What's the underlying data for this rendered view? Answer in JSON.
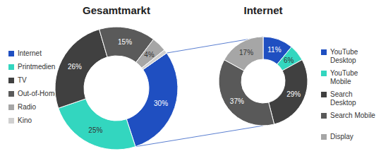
{
  "chart_data": [
    {
      "type": "pie",
      "title": "Gesamtmarkt",
      "categories": [
        "Internet",
        "Printmedien",
        "TV",
        "Out-of-Home",
        "Radio",
        "Kino"
      ],
      "values": [
        30,
        25,
        26,
        15,
        4,
        1
      ],
      "value_labels": [
        "30%",
        "25%",
        "26%",
        "15%",
        "4%",
        null
      ],
      "colors": [
        "#1f4fc1",
        "#33d6bf",
        "#404040",
        "#5a5a5a",
        "#a6a6a6",
        "#d0d0d0"
      ],
      "data_labels": true,
      "legend": "left"
    },
    {
      "type": "pie",
      "title": "Internet",
      "categories": [
        "YouTube Desktop",
        "YouTube Mobile",
        "Search Desktop",
        "Search Mobile",
        "Display"
      ],
      "values": [
        11,
        6,
        29,
        37,
        17
      ],
      "value_labels": [
        "11%",
        "6%",
        "29%",
        "37%",
        "17%"
      ],
      "colors": [
        "#1f4fc1",
        "#33d6bf",
        "#404040",
        "#595959",
        "#a6a6a6"
      ],
      "data_labels": true,
      "legend": "right"
    }
  ]
}
